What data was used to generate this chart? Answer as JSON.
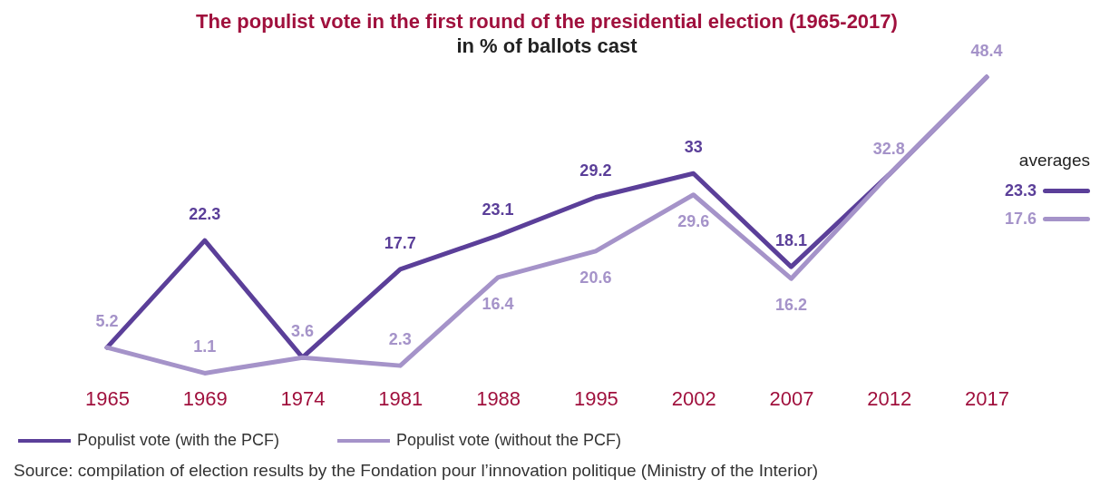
{
  "chart_data": {
    "type": "line",
    "title": "The populist vote in the first round of the presidential election (1965-2017)",
    "subtitle": "in % of ballots cast",
    "categories": [
      "1965",
      "1969",
      "1974",
      "1981",
      "1988",
      "1995",
      "2002",
      "2007",
      "2012",
      "2017"
    ],
    "series": [
      {
        "name": "Populist vote (with the PCF)",
        "color": "#5b3f99",
        "values": [
          5.2,
          22.3,
          3.6,
          17.7,
          23.1,
          29.2,
          33,
          18.1,
          32.8,
          48.4
        ],
        "value_labels": [
          null,
          "22.3",
          null,
          "17.7",
          "23.1",
          "29.2",
          "33",
          "18.1",
          null,
          null
        ]
      },
      {
        "name": "Populist vote (without the PCF)",
        "color": "#a593c9",
        "values": [
          5.2,
          1.1,
          3.6,
          2.3,
          16.4,
          20.6,
          29.6,
          16.2,
          32.8,
          48.4
        ],
        "value_labels": [
          "5.2",
          "1.1",
          "3.6",
          "2.3",
          "16.4",
          "20.6",
          "29.6",
          "16.2",
          "32.8",
          "48.4"
        ]
      }
    ],
    "legend": "bottom",
    "annotations": [
      "averages",
      "23.3",
      "17.6",
      "Source: compilation of election results by the Fondation pour l’innovation politique (Ministry of the Interior)"
    ]
  }
}
